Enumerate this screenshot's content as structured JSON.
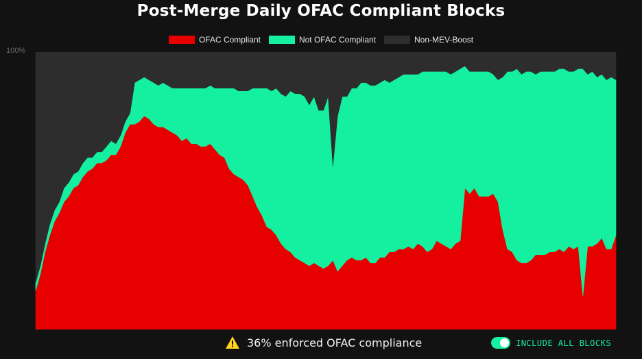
{
  "chart_data": {
    "type": "area",
    "stacked": true,
    "percent": true,
    "title": "Post-Merge Daily OFAC Compliant Blocks",
    "ytick_top": "100%",
    "ylim": [
      0,
      100
    ],
    "grid": false,
    "legend_position": "top-center",
    "series": [
      {
        "name": "OFAC Compliant",
        "color": "#e60000",
        "values": [
          14,
          20,
          28,
          34,
          39,
          42,
          46,
          48,
          51,
          52,
          55,
          57,
          58,
          60,
          60,
          61,
          63,
          63,
          66,
          71,
          74,
          74,
          75,
          77,
          76,
          74,
          73,
          73,
          72,
          71,
          70,
          68,
          69,
          67,
          67,
          66,
          66,
          67,
          65,
          63,
          62,
          58,
          56,
          55,
          54,
          52,
          48,
          44,
          41,
          37,
          36,
          34,
          31,
          29,
          28,
          26,
          25,
          24,
          23,
          24,
          23,
          22,
          23,
          25,
          21,
          23,
          25,
          26,
          25,
          25,
          26,
          24,
          24,
          26,
          26,
          28,
          28,
          29,
          29,
          30,
          29,
          31,
          30,
          28,
          29,
          32,
          31,
          30,
          29,
          31,
          32,
          51,
          49,
          51,
          48,
          48,
          48,
          49,
          46,
          36,
          29,
          28,
          25,
          24,
          24,
          25,
          27,
          27,
          27,
          28,
          28,
          29,
          28,
          30,
          29,
          30,
          12,
          30,
          30,
          31,
          33,
          29,
          29,
          34
        ]
      },
      {
        "name": "Not OFAC Compliant",
        "color": "#14f0a0",
        "values": [
          3,
          3,
          3,
          4,
          4,
          4,
          5,
          5,
          5,
          5,
          5,
          5,
          4,
          4,
          4,
          5,
          5,
          4,
          4,
          4,
          4,
          15,
          15,
          14,
          14,
          15,
          15,
          16,
          16,
          16,
          17,
          19,
          18,
          20,
          20,
          21,
          21,
          21,
          22,
          24,
          25,
          29,
          31,
          31,
          32,
          34,
          39,
          43,
          46,
          50,
          50,
          53,
          54,
          55,
          58,
          59,
          60,
          60,
          58,
          60,
          56,
          57,
          61,
          34,
          56,
          61,
          59,
          61,
          62,
          64,
          63,
          64,
          64,
          63,
          64,
          61,
          62,
          62,
          63,
          62,
          63,
          61,
          63,
          65,
          64,
          61,
          62,
          63,
          63,
          62,
          62,
          44,
          44,
          42,
          45,
          45,
          45,
          43,
          44,
          55,
          64,
          65,
          69,
          68,
          69,
          68,
          65,
          66,
          66,
          65,
          65,
          65,
          66,
          63,
          64,
          64,
          82,
          62,
          63,
          60,
          59,
          61,
          62,
          56
        ]
      },
      {
        "name": "Non-MEV-Boost",
        "color": "#2d2d2d",
        "values": [
          83,
          77,
          69,
          62,
          57,
          54,
          49,
          47,
          44,
          43,
          40,
          38,
          38,
          36,
          36,
          34,
          32,
          33,
          30,
          25,
          22,
          11,
          10,
          9,
          10,
          11,
          12,
          11,
          12,
          13,
          13,
          13,
          13,
          13,
          13,
          13,
          13,
          12,
          13,
          13,
          13,
          13,
          13,
          14,
          14,
          14,
          13,
          13,
          13,
          13,
          14,
          13,
          15,
          16,
          14,
          15,
          15,
          16,
          19,
          16,
          21,
          21,
          16,
          41,
          23,
          16,
          16,
          13,
          13,
          11,
          11,
          12,
          12,
          11,
          10,
          11,
          10,
          9,
          8,
          8,
          8,
          8,
          7,
          7,
          7,
          7,
          7,
          7,
          8,
          7,
          6,
          5,
          7,
          7,
          7,
          7,
          7,
          8,
          10,
          9,
          7,
          7,
          6,
          8,
          7,
          7,
          8,
          7,
          7,
          7,
          7,
          6,
          6,
          7,
          7,
          6,
          6,
          8,
          7,
          9,
          8,
          10,
          9,
          10
        ]
      }
    ]
  },
  "footer": {
    "warning_icon": "warning-triangle-icon",
    "message": "36% enforced OFAC compliance",
    "toggle_label": "INCLUDE ALL BLOCKS",
    "toggle_on": true,
    "toggle_color": "#14f0a0"
  }
}
